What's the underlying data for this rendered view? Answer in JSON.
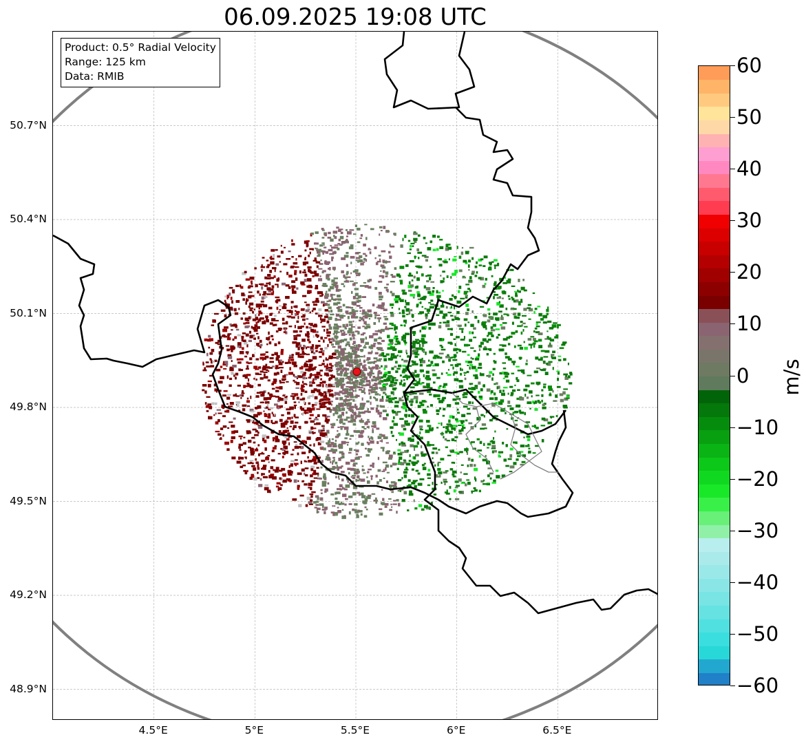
{
  "title": "06.09.2025 19:08 UTC",
  "info_box": {
    "product": "Product: 0.5° Radial Velocity",
    "range": "Range: 125 km",
    "data": "Data: RMIB"
  },
  "map": {
    "lon_range": [
      4.0,
      7.0
    ],
    "lat_range": [
      48.8,
      51.0
    ],
    "radar_site": {
      "lon": 5.505,
      "lat": 49.914
    },
    "range_ring_km": 125,
    "lat_ticks": [
      {
        "value": 50.7,
        "label": "50.7°N"
      },
      {
        "value": 50.4,
        "label": "50.4°N"
      },
      {
        "value": 50.1,
        "label": "50.1°N"
      },
      {
        "value": 49.8,
        "label": "49.8°N"
      },
      {
        "value": 49.5,
        "label": "49.5°N"
      },
      {
        "value": 49.2,
        "label": "49.2°N"
      },
      {
        "value": 48.9,
        "label": "48.9°N"
      }
    ],
    "lon_ticks": [
      {
        "value": 4.5,
        "label": "4.5°E"
      },
      {
        "value": 5.0,
        "label": "5°E"
      },
      {
        "value": 5.5,
        "label": "5.5°E"
      },
      {
        "value": 6.0,
        "label": "6°E"
      },
      {
        "value": 6.5,
        "label": "6.5°E"
      }
    ],
    "gridlines": true,
    "colors": {
      "ring": "#808080",
      "border": "#000000",
      "admin_border": "#808080",
      "receding": "#7a0000",
      "approaching": "#0b7a0b",
      "near_zero_red": "#8a6470",
      "near_zero_green": "#6a8060",
      "radar_site": "#e8141a"
    }
  },
  "colorbar": {
    "unit": "m/s",
    "min": -60,
    "max": 60,
    "ticks": [
      {
        "value": 60,
        "label": "60"
      },
      {
        "value": 50,
        "label": "50"
      },
      {
        "value": 40,
        "label": "40"
      },
      {
        "value": 30,
        "label": "30"
      },
      {
        "value": 20,
        "label": "20"
      },
      {
        "value": 10,
        "label": "10"
      },
      {
        "value": 0,
        "label": "0"
      },
      {
        "value": -10,
        "label": "−10"
      },
      {
        "value": -20,
        "label": "−20"
      },
      {
        "value": -30,
        "label": "−30"
      },
      {
        "value": -40,
        "label": "−40"
      },
      {
        "value": -50,
        "label": "−50"
      },
      {
        "value": -60,
        "label": "−60"
      }
    ],
    "colors": [
      "#2080c8",
      "#22a8d0",
      "#28d8d8",
      "#3adede",
      "#50e0e0",
      "#66e2e2",
      "#78e4e4",
      "#8ae6e6",
      "#9ae8e8",
      "#aaeaea",
      "#b8eeee",
      "#90f0a8",
      "#68f078",
      "#38f048",
      "#18e828",
      "#10d820",
      "#0cc818",
      "#0ab414",
      "#08a010",
      "#068c0c",
      "#04780a",
      "#026408",
      "#5f7a5c",
      "#6e7a62",
      "#7a756a",
      "#857070",
      "#8a6470",
      "#8a5058",
      "#7a0000",
      "#8c0000",
      "#a00000",
      "#b40000",
      "#c80000",
      "#dc0000",
      "#f00000",
      "#ff3c50",
      "#ff5a6e",
      "#ff7890",
      "#ff88c0",
      "#ff9ed0",
      "#ffb2b2",
      "#ffd8a8",
      "#ffe49a",
      "#ffca80",
      "#ffb468",
      "#ff9c58"
    ]
  }
}
